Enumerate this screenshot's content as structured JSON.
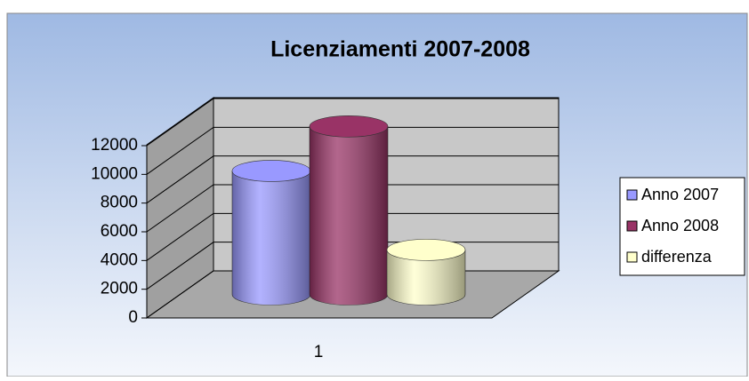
{
  "chart_data": {
    "type": "bar3d",
    "title": "Licenziamenti 2007-2008",
    "categories": [
      "1"
    ],
    "series": [
      {
        "name": "Anno 2007",
        "color": "#9999ff",
        "values": [
          8600
        ]
      },
      {
        "name": "Anno 2008",
        "color": "#993366",
        "values": [
          11700
        ]
      },
      {
        "name": "differenza",
        "color": "#ffffcc",
        "values": [
          3100
        ]
      }
    ],
    "ylim": [
      0,
      12000
    ],
    "yticks": [
      0,
      2000,
      4000,
      6000,
      8000,
      10000,
      12000
    ],
    "grid": true,
    "legend": "right"
  }
}
